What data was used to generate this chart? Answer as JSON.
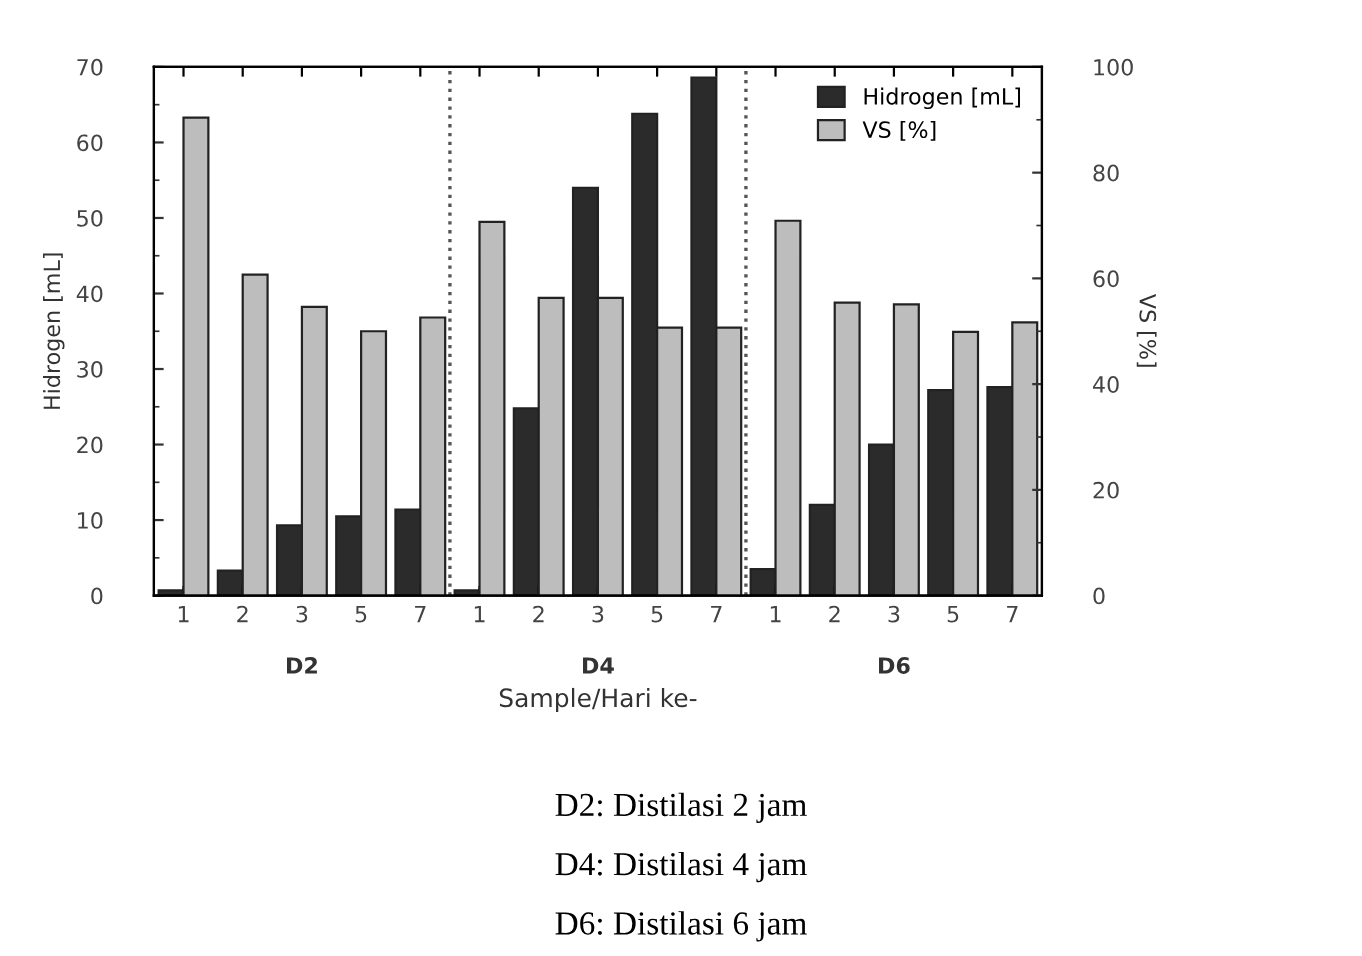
{
  "chart_data": {
    "type": "bar",
    "xlabel": "Sample/Hari ke-",
    "ylabel": "Hidrogen [mL]",
    "y2label": "VS [%]",
    "categories": [
      "1",
      "2",
      "3",
      "5",
      "7",
      "1",
      "2",
      "3",
      "5",
      "7",
      "1",
      "2",
      "3",
      "5",
      "7"
    ],
    "series": [
      {
        "name": "Hidrogen [mL]",
        "color": "#2b2b2b",
        "values": [
          0.7,
          3.3,
          9.3,
          10.5,
          11.4,
          0.7,
          24.8,
          54,
          63.8,
          68.6,
          3.5,
          12,
          20,
          27.2,
          27.6
        ]
      },
      {
        "name": "VS [%]",
        "color": "#bdbdbd",
        "axis": "y2",
        "values": [
          90.4,
          60.7,
          54.6,
          50,
          52.6,
          70.7,
          56.3,
          56.3,
          50.7,
          50.7,
          70.9,
          55.4,
          55.1,
          49.9,
          51.7
        ]
      }
    ],
    "ylim": [
      0,
      70
    ],
    "yticks": [
      0,
      10,
      20,
      30,
      40,
      50,
      60,
      70
    ],
    "y2lim": [
      0,
      100
    ],
    "y2ticks": [
      0,
      20,
      40,
      60,
      80,
      100
    ],
    "legend": "top right",
    "grid": false,
    "annotations": [
      "D2",
      "D4",
      "D6",
      "D2: Distilasi 2 jam",
      "D4: Distilasi 4 jam",
      "D6: Distilasi 6 jam"
    ]
  }
}
